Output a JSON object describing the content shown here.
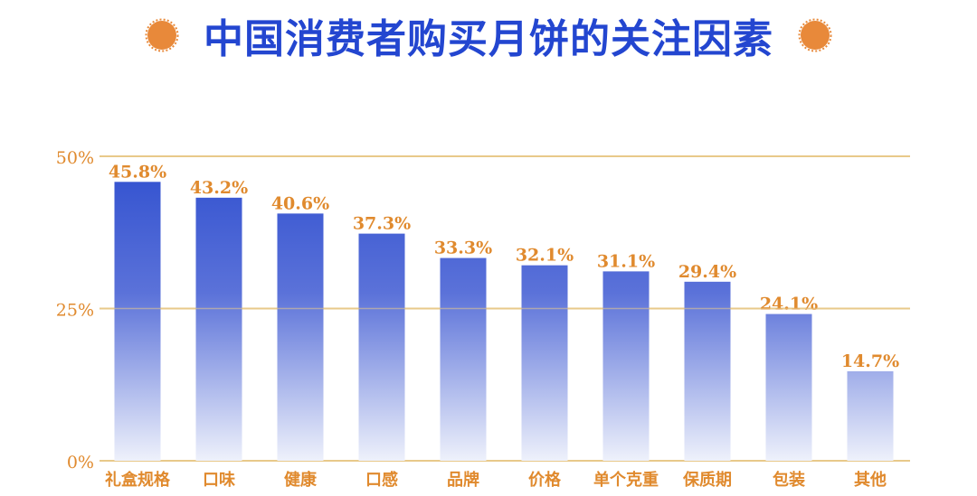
{
  "title": "中国消费者购买月饼的关注因素",
  "colors": {
    "title": "#2346d0",
    "bar_top": "#2f4fcf",
    "bar_bottom": "#eef1fb",
    "labels": "#e08a2e",
    "gridline": "#e8c98a",
    "dot": "#e8893a"
  },
  "chart_data": {
    "type": "bar",
    "categories": [
      "礼盒规格",
      "口味",
      "健康",
      "口感",
      "品牌",
      "价格",
      "单个克重",
      "保质期",
      "包装",
      "其他"
    ],
    "values": [
      45.8,
      43.2,
      40.6,
      37.3,
      33.3,
      32.1,
      31.1,
      29.4,
      24.1,
      14.7
    ],
    "value_labels": [
      "45.8%",
      "43.2%",
      "40.6%",
      "37.3%",
      "33.3%",
      "32.1%",
      "31.1%",
      "29.4%",
      "24.1%",
      "14.7%"
    ],
    "ylim": [
      0,
      50
    ],
    "yticks": [
      0,
      25,
      50
    ],
    "ytick_labels": [
      "0%",
      "25%",
      "50%"
    ],
    "grid": true
  }
}
